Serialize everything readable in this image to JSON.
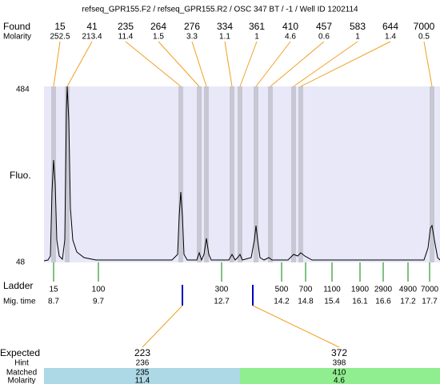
{
  "header": {
    "title": "refseq_GPR155.F2 / refseq_GPR155.R2 / OSC 347 BT / -1 / Well ID 1202114"
  },
  "found": {
    "label": "Found",
    "molarity_label": "Molarity",
    "peaks": [
      {
        "size": 15,
        "molarity": 252.5
      },
      {
        "size": 41,
        "molarity": 213.4
      },
      {
        "size": 235,
        "molarity": 11.4
      },
      {
        "size": 264,
        "molarity": 1.5
      },
      {
        "size": 276,
        "molarity": 3.3
      },
      {
        "size": 334,
        "molarity": 1.1
      },
      {
        "size": 361,
        "molarity": 1
      },
      {
        "size": 410,
        "molarity": 4.6
      },
      {
        "size": 457,
        "molarity": 0.6
      },
      {
        "size": 583,
        "molarity": 1
      },
      {
        "size": 644,
        "molarity": 1.4
      },
      {
        "size": 7000,
        "molarity": 0.5
      }
    ]
  },
  "axis": {
    "label": "Fluo.",
    "ticks": [
      484,
      48
    ]
  },
  "ladder": {
    "label": "Ladder",
    "time_label": "Mig. time",
    "sizes": [
      15,
      100,
      300,
      500,
      700,
      1100,
      1900,
      2900,
      4900,
      7000
    ],
    "times": [
      8.7,
      9.7,
      12.7,
      14.2,
      14.8,
      15.4,
      16.1,
      16.6,
      17.2,
      17.7
    ]
  },
  "expected": {
    "labels": [
      "Expected",
      "Hint",
      "Matched",
      "Molarity"
    ],
    "bands": [
      {
        "expected": 223,
        "hint": 236,
        "matched": 235,
        "molarity": 11.4
      },
      {
        "expected": 372,
        "hint": 398,
        "matched": 410,
        "molarity": 4.6
      }
    ]
  }
}
